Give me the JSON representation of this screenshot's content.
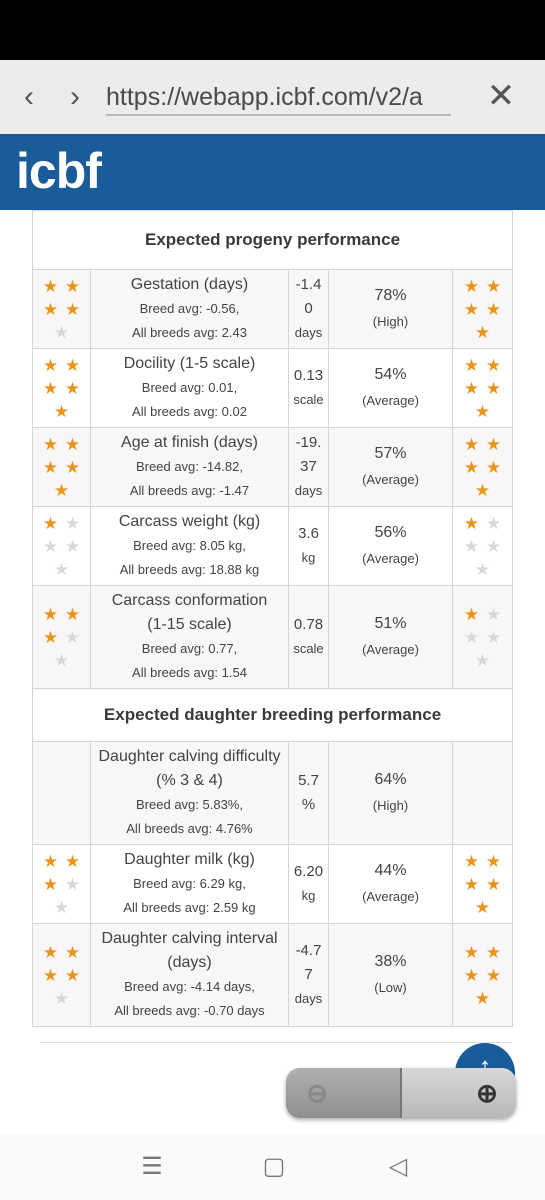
{
  "browser": {
    "url": "https://webapp.icbf.com/v2/a",
    "back_icon": "chevron-left-icon",
    "forward_icon": "chevron-right-icon",
    "close_icon": "close-icon"
  },
  "brand": {
    "logo_text": "icbf",
    "color": "#1a5c99"
  },
  "star_color": "#e8961b",
  "sections": [
    {
      "title": "Expected progeny performance",
      "rows": [
        {
          "trait": "Gestation (days)",
          "breed_avg": "Breed avg: -0.56,",
          "all_avg": "All breeds avg: 2.43",
          "value_lines": [
            "-1.4",
            "0"
          ],
          "unit": "days",
          "reliability": "78%",
          "level": "(High)",
          "left_stars": 4,
          "right_stars": 5
        },
        {
          "trait": "Docility (1-5 scale)",
          "breed_avg": "Breed avg: 0.01,",
          "all_avg": "All breeds avg: 0.02",
          "value_lines": [
            "0.13"
          ],
          "unit": "scale",
          "reliability": "54%",
          "level": "(Average)",
          "left_stars": 5,
          "right_stars": 5
        },
        {
          "trait": "Age at finish (days)",
          "breed_avg": "Breed avg: -14.82,",
          "all_avg": "All breeds avg: -1.47",
          "value_lines": [
            "-19.",
            "37"
          ],
          "unit": "days",
          "reliability": "57%",
          "level": "(Average)",
          "left_stars": 5,
          "right_stars": 5
        },
        {
          "trait": "Carcass weight (kg)",
          "breed_avg": "Breed avg: 8.05 kg,",
          "all_avg": "All breeds avg: 18.88 kg",
          "value_lines": [
            "3.6"
          ],
          "unit": "kg",
          "reliability": "56%",
          "level": "(Average)",
          "left_stars": 1,
          "right_stars": 1
        },
        {
          "trait_lines": [
            "Carcass conformation",
            "(1-15 scale)"
          ],
          "breed_avg": "Breed avg: 0.77,",
          "all_avg": "All breeds avg: 1.54",
          "value_lines": [
            "0.78"
          ],
          "unit": "scale",
          "reliability": "51%",
          "level": "(Average)",
          "left_stars": 3,
          "right_stars": 1
        }
      ]
    },
    {
      "title": "Expected daughter breeding performance",
      "rows": [
        {
          "trait_lines": [
            "Daughter calving difficulty",
            "(% 3 & 4)"
          ],
          "breed_avg": "Breed avg: 5.83%,",
          "all_avg": "All breeds avg: 4.76%",
          "value_lines": [
            "5.7"
          ],
          "unit": "%",
          "reliability": "64%",
          "level": "(High)",
          "left_stars": 0,
          "right_stars": 0
        },
        {
          "trait": "Daughter milk (kg)",
          "breed_avg": "Breed avg: 6.29 kg,",
          "all_avg": "All breeds avg: 2.59 kg",
          "value_lines": [
            "6.20"
          ],
          "unit": "kg",
          "reliability": "44%",
          "level": "(Average)",
          "left_stars": 3,
          "right_stars": 5
        },
        {
          "trait_lines": [
            "Daughter calving interval",
            "(days)"
          ],
          "breed_avg": "Breed avg: -4.14 days,",
          "all_avg": "All breeds avg: -0.70 days",
          "value_lines": [
            "-4.7",
            "7"
          ],
          "unit": "days",
          "reliability": "38%",
          "level": "(Low)",
          "left_stars": 4,
          "right_stars": 5
        }
      ]
    }
  ],
  "controls": {
    "scroll_top_icon": "arrow-up-icon",
    "zoom_out_icon": "zoom-out-icon",
    "zoom_in_icon": "zoom-in-icon"
  },
  "system_nav": {
    "recents_icon": "menu-icon",
    "home_icon": "square-icon",
    "back_icon": "triangle-back-icon"
  }
}
